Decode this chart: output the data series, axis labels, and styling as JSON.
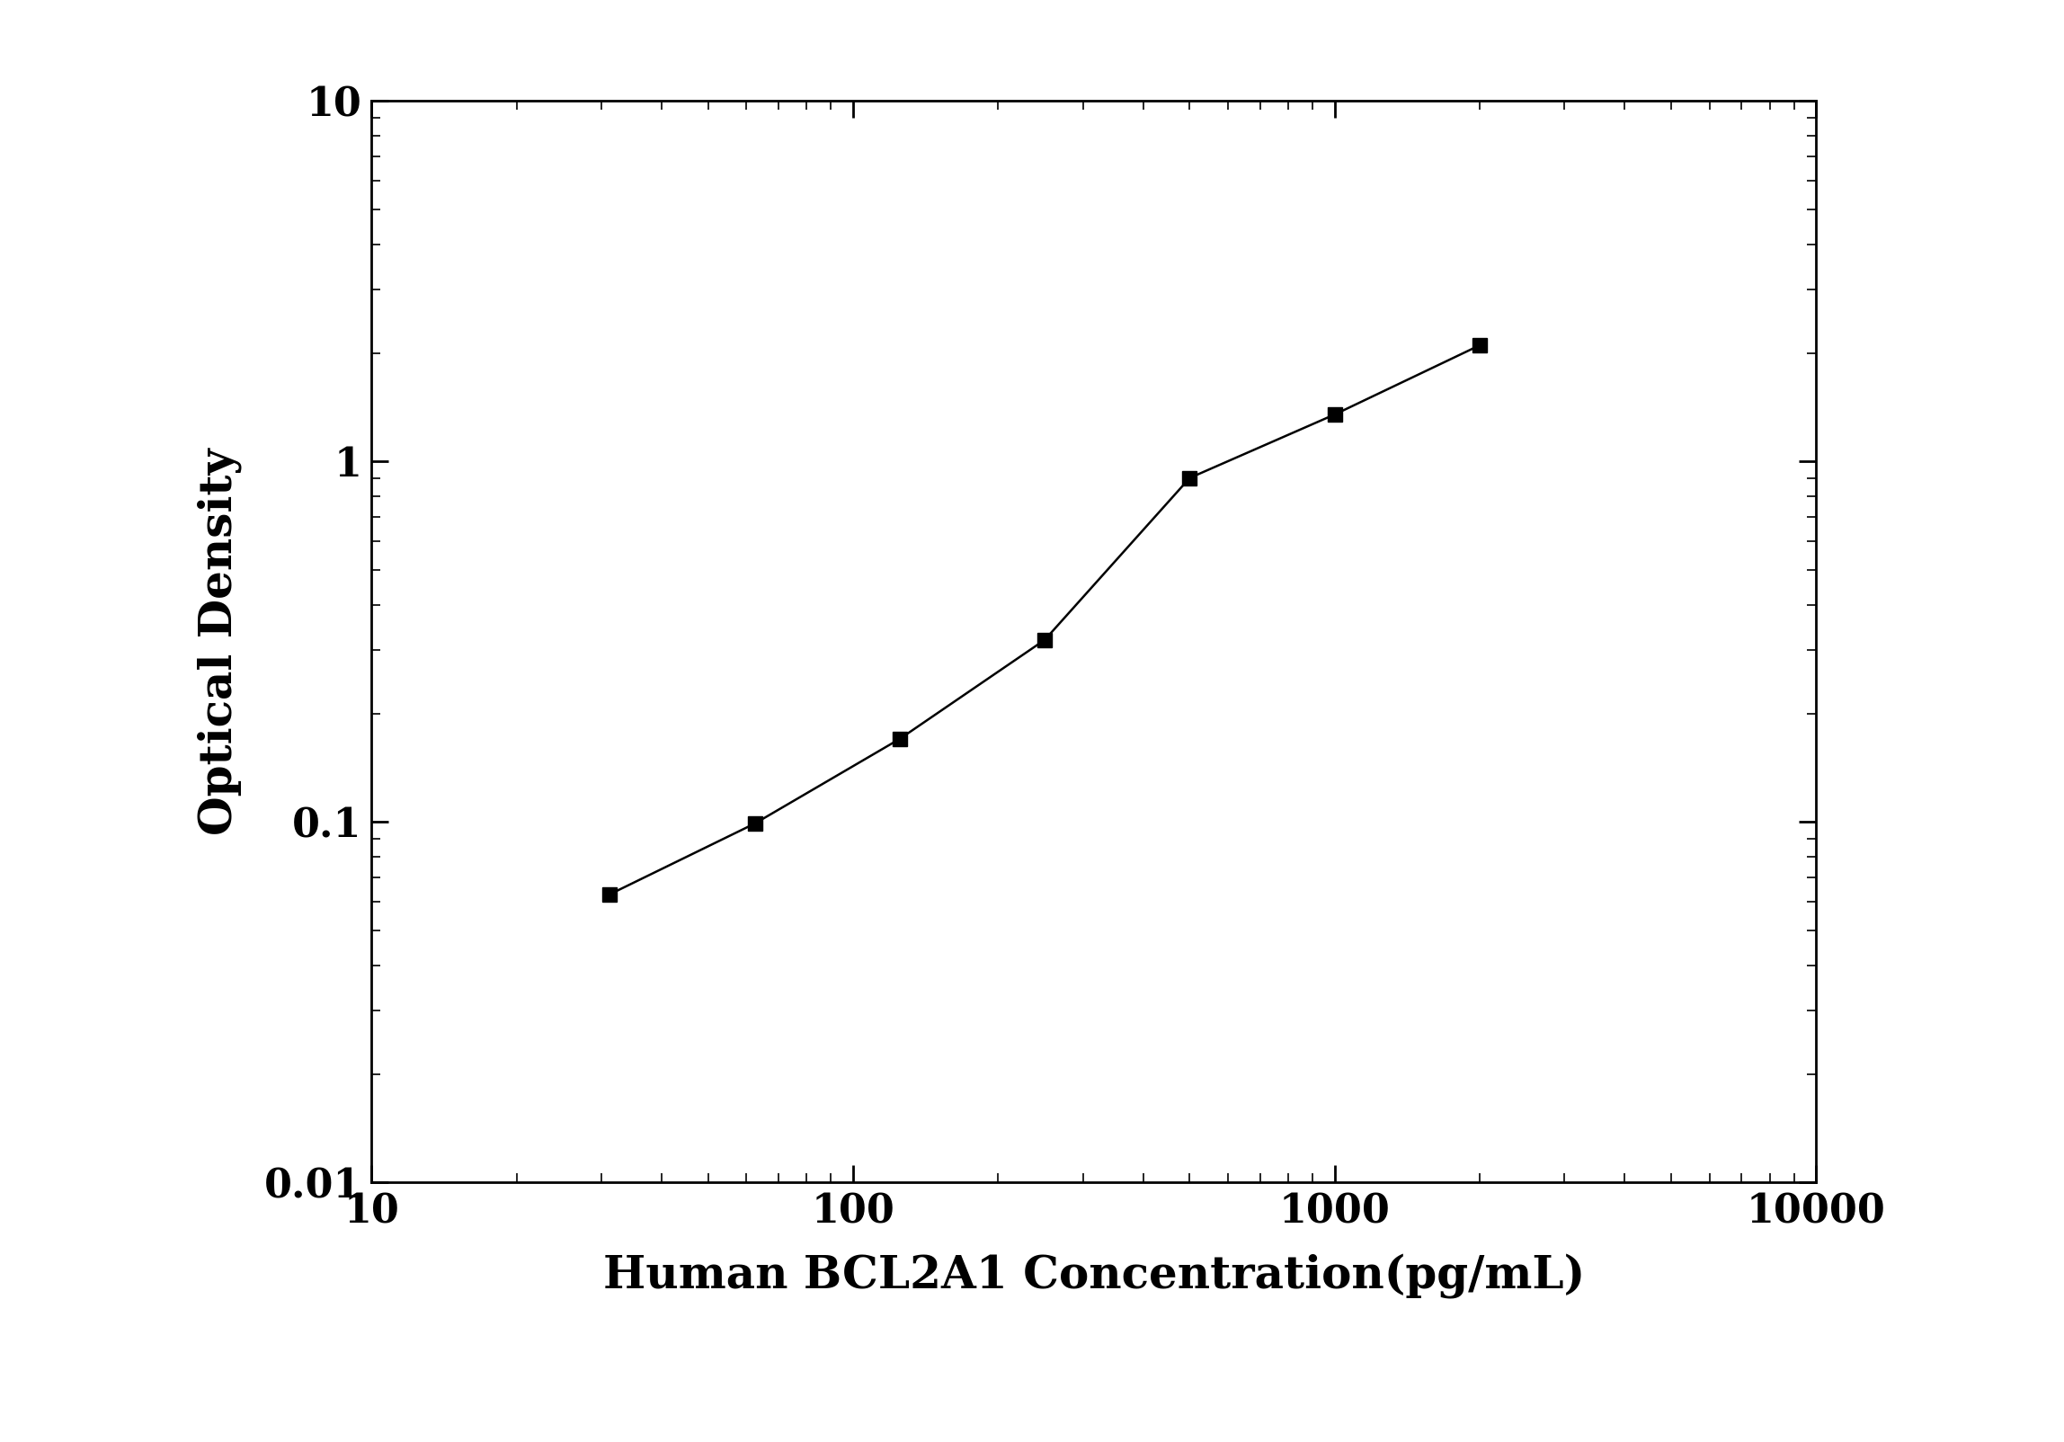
{
  "x_data": [
    31.25,
    62.5,
    125,
    250,
    500,
    1000,
    2000
  ],
  "y_data": [
    0.063,
    0.099,
    0.17,
    0.32,
    0.9,
    1.35,
    2.1
  ],
  "x_label": "Human BCL2A1 Concentration(pg/mL)",
  "y_label": "Optical Density",
  "x_lim": [
    10,
    10000
  ],
  "y_lim": [
    0.01,
    10
  ],
  "x_ticks": [
    10,
    100,
    1000,
    10000
  ],
  "y_ticks": [
    0.01,
    0.1,
    1,
    10
  ],
  "line_color": "#000000",
  "marker": "s",
  "marker_size": 12,
  "marker_color": "#000000",
  "line_width": 1.8,
  "font_size_label": 36,
  "font_size_tick": 32,
  "background_color": "#ffffff",
  "font_family": "serif",
  "font_weight": "bold"
}
